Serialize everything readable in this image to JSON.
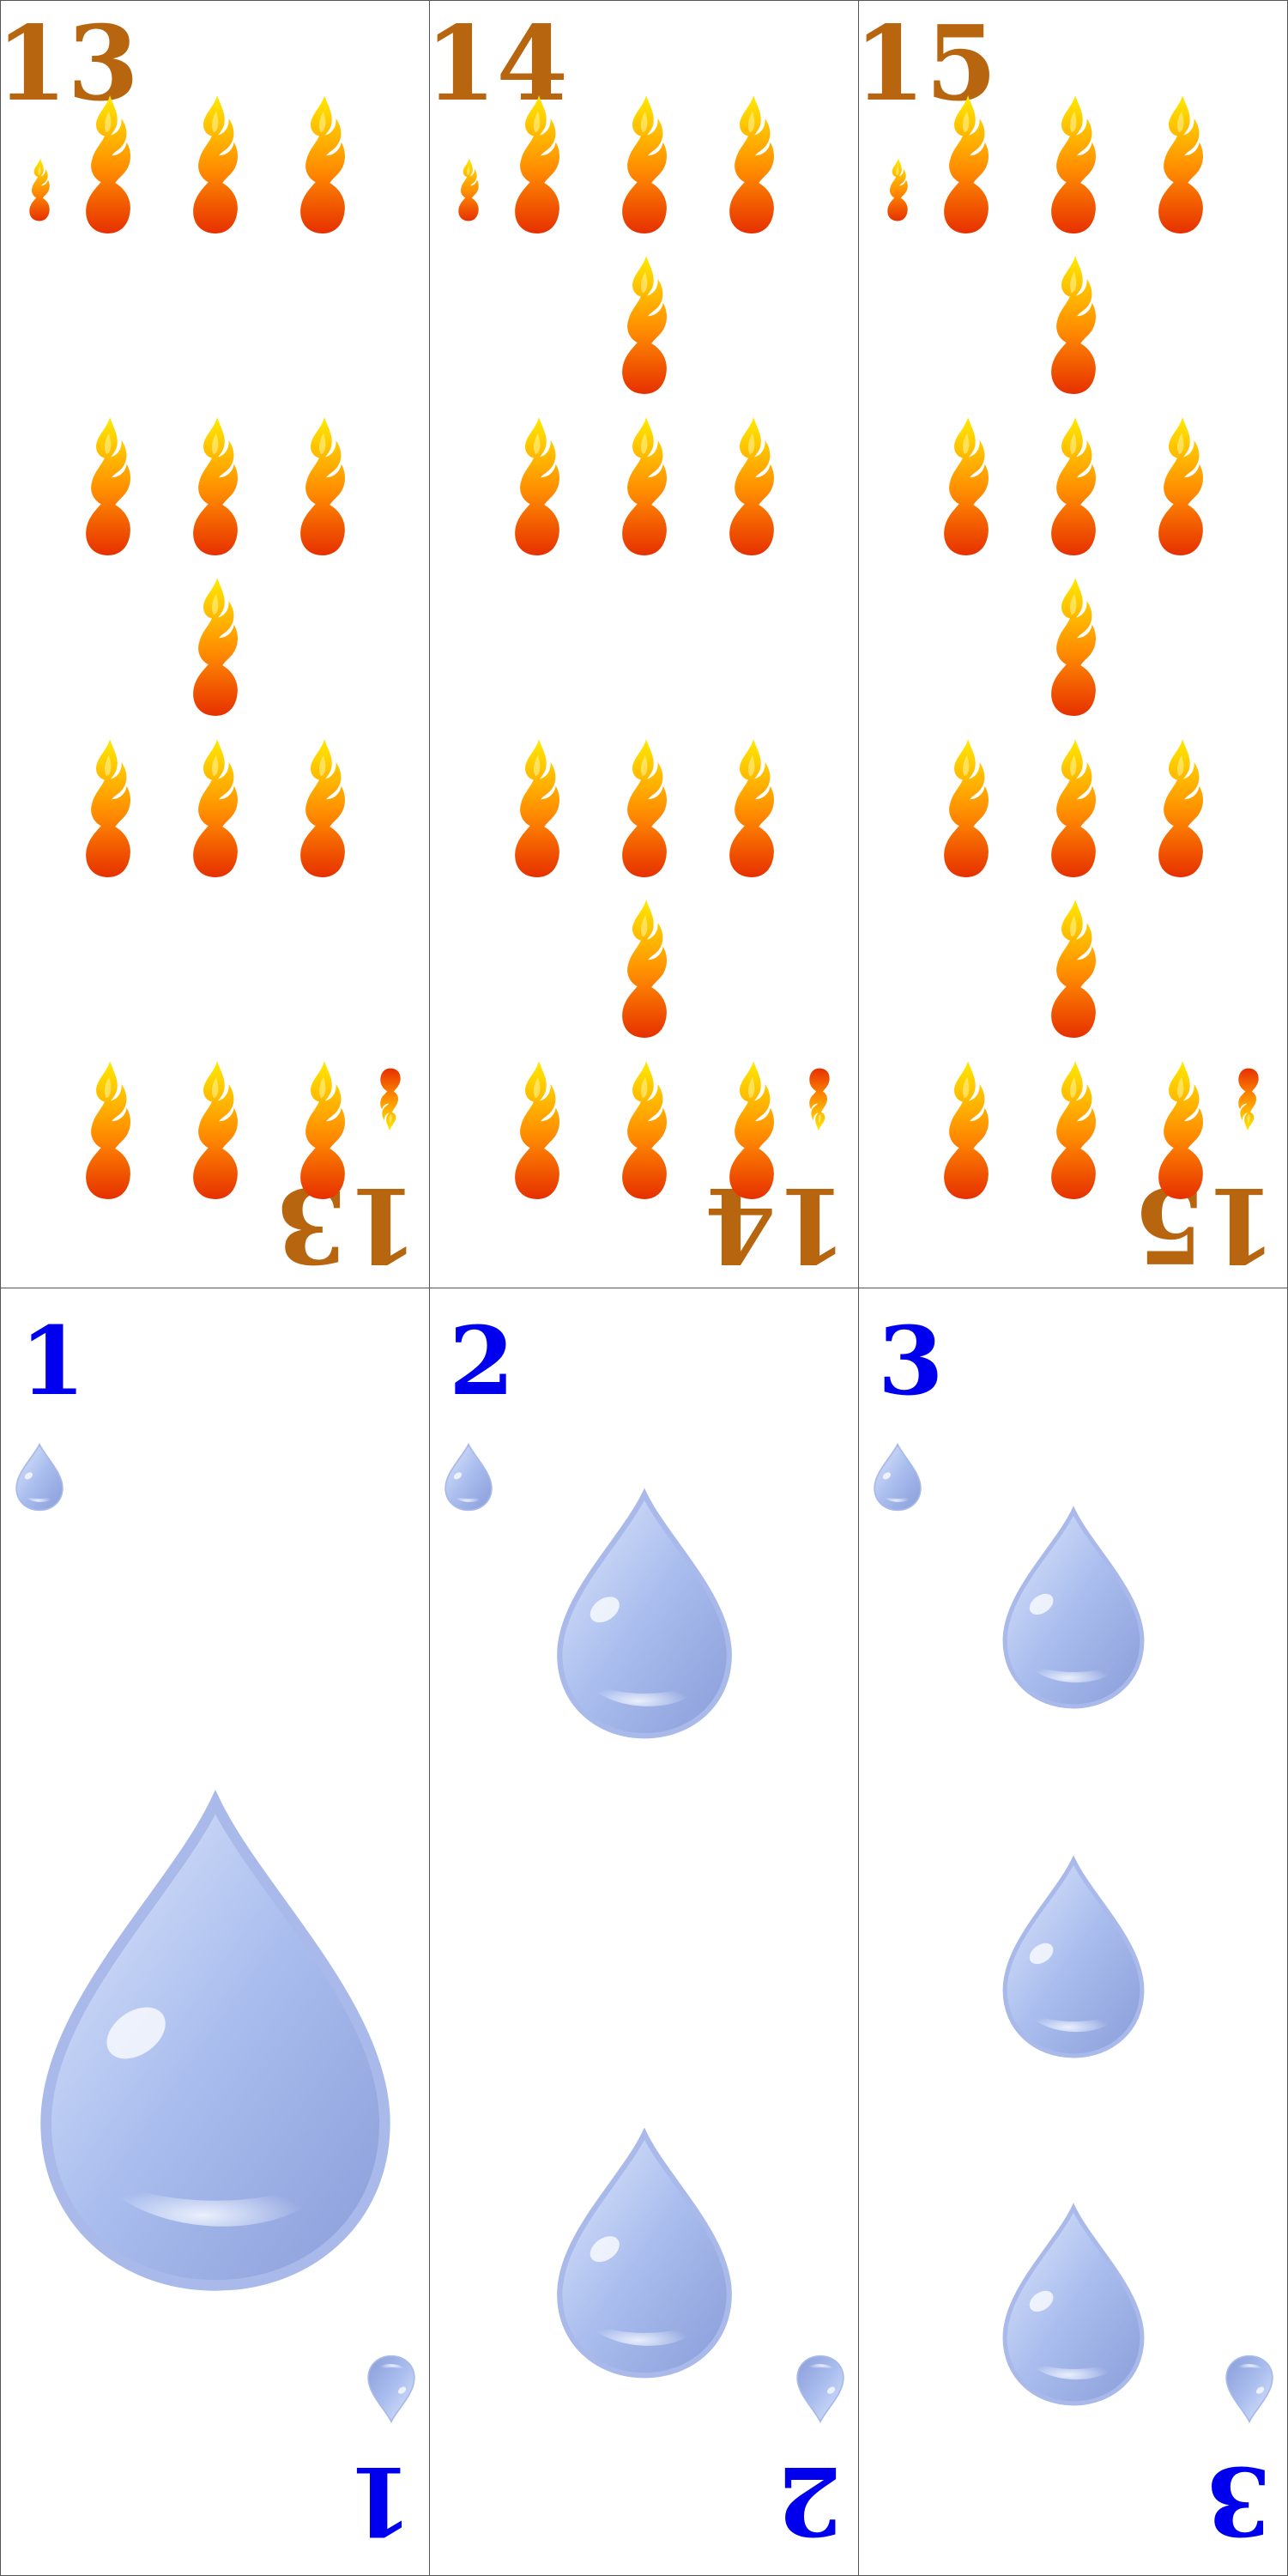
{
  "fire_cards": [
    {
      "rank": "13",
      "pips": 13
    },
    {
      "rank": "14",
      "pips": 14
    },
    {
      "rank": "15",
      "pips": 15
    }
  ],
  "water_cards": [
    {
      "rank": "1",
      "pips": 1
    },
    {
      "rank": "2",
      "pips": 2
    },
    {
      "rank": "3",
      "pips": 3
    }
  ],
  "suits": {
    "fire": {
      "icon": "flame-icon",
      "rank_color": "#b8650f",
      "flame_top": "#ffea00",
      "flame_bottom": "#e63000"
    },
    "water": {
      "icon": "water-drop-icon",
      "rank_color": "#0000ee",
      "drop_light": "#dfe8fb",
      "drop_dark": "#8a9dd9"
    }
  }
}
